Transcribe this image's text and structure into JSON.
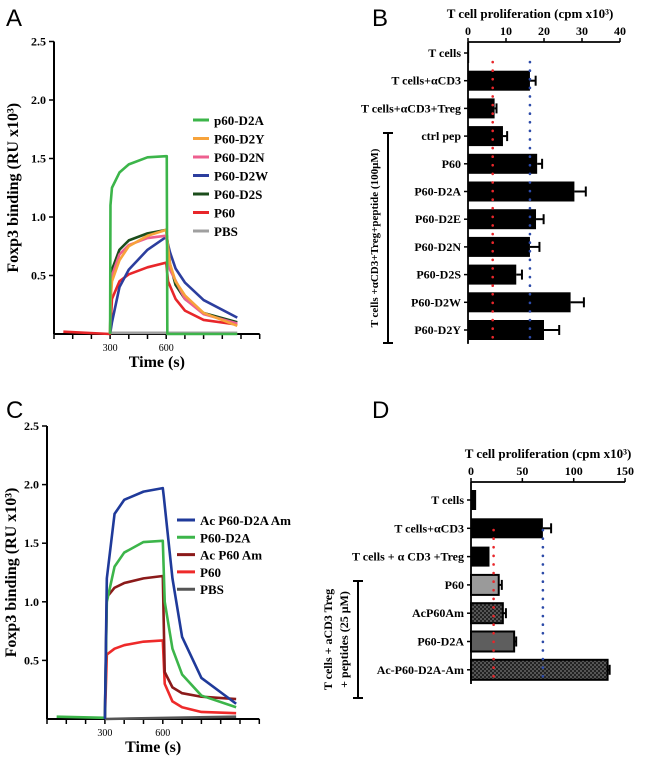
{
  "panels": {
    "a": "A",
    "b": "B",
    "c": "C",
    "d": "D"
  },
  "chart_data": [
    {
      "id": "A",
      "type": "line",
      "xlabel": "Time (s)",
      "ylabel": "Foxp3 binding (RU x10³)",
      "xlim": [
        0,
        1100
      ],
      "ylim": [
        0,
        2.5
      ],
      "xticklabels": [
        "300",
        "600"
      ],
      "yticklabels": [
        "0.5",
        "1.0",
        "1.5",
        "2.0",
        "2.5"
      ],
      "legend_position": "right",
      "series": [
        {
          "name": "p60-D2A",
          "color": "#3cb54a",
          "points": [
            [
              300,
              0
            ],
            [
              302,
              1.1
            ],
            [
              310,
              1.25
            ],
            [
              350,
              1.38
            ],
            [
              400,
              1.45
            ],
            [
              500,
              1.51
            ],
            [
              598,
              1.52
            ],
            [
              603,
              1.52
            ],
            [
              606,
              0
            ],
            [
              980,
              0
            ]
          ]
        },
        {
          "name": "P60-D2Y",
          "color": "#f7a33b",
          "points": [
            [
              300,
              0
            ],
            [
              303,
              0.3
            ],
            [
              310,
              0.45
            ],
            [
              350,
              0.63
            ],
            [
              400,
              0.75
            ],
            [
              500,
              0.84
            ],
            [
              600,
              0.89
            ],
            [
              620,
              0.6
            ],
            [
              650,
              0.45
            ],
            [
              700,
              0.33
            ],
            [
              800,
              0.18
            ],
            [
              980,
              0.07
            ]
          ]
        },
        {
          "name": "P60-D2N",
          "color": "#ee5f8f",
          "points": [
            [
              300,
              0
            ],
            [
              303,
              0.3
            ],
            [
              310,
              0.5
            ],
            [
              350,
              0.68
            ],
            [
              400,
              0.76
            ],
            [
              500,
              0.82
            ],
            [
              600,
              0.84
            ],
            [
              620,
              0.55
            ],
            [
              700,
              0.3
            ],
            [
              800,
              0.17
            ],
            [
              980,
              0.09
            ]
          ]
        },
        {
          "name": "P60-D2W",
          "color": "#2c3e9e",
          "points": [
            [
              300,
              0
            ],
            [
              310,
              0.1
            ],
            [
              350,
              0.4
            ],
            [
              400,
              0.55
            ],
            [
              500,
              0.72
            ],
            [
              600,
              0.83
            ],
            [
              620,
              0.7
            ],
            [
              650,
              0.56
            ],
            [
              700,
              0.44
            ],
            [
              800,
              0.29
            ],
            [
              980,
              0.14
            ]
          ]
        },
        {
          "name": "P60-D2S",
          "color": "#1b4d1b",
          "points": [
            [
              300,
              0
            ],
            [
              303,
              0.35
            ],
            [
              310,
              0.55
            ],
            [
              350,
              0.72
            ],
            [
              400,
              0.8
            ],
            [
              500,
              0.86
            ],
            [
              600,
              0.89
            ],
            [
              620,
              0.6
            ],
            [
              650,
              0.42
            ],
            [
              700,
              0.3
            ],
            [
              800,
              0.18
            ],
            [
              980,
              0.1
            ]
          ]
        },
        {
          "name": "P60",
          "color": "#e8262a",
          "points": [
            [
              50,
              0.02
            ],
            [
              300,
              0
            ],
            [
              310,
              0.3
            ],
            [
              350,
              0.45
            ],
            [
              400,
              0.51
            ],
            [
              500,
              0.57
            ],
            [
              600,
              0.61
            ],
            [
              610,
              0.45
            ],
            [
              650,
              0.3
            ],
            [
              700,
              0.2
            ],
            [
              800,
              0.12
            ],
            [
              980,
              0.08
            ]
          ]
        },
        {
          "name": "PBS",
          "color": "#a0a0a0",
          "points": [
            [
              300,
              0.01
            ],
            [
              980,
              0.01
            ]
          ]
        }
      ]
    },
    {
      "id": "B",
      "type": "bar",
      "orientation": "horizontal",
      "title": "T cell proliferation (cpm x10³)",
      "xlim": [
        0,
        40
      ],
      "xticklabels": [
        "0",
        "10",
        "20",
        "30",
        "40"
      ],
      "group_label": "T cells +αCD3+Treg+peptide (100μM)",
      "reference_lines": [
        {
          "value": 6.5,
          "color": "#e8262a"
        },
        {
          "value": 16.3,
          "color": "#2c4aa8"
        }
      ],
      "categories": [
        "T cells",
        "T cells+αCD3",
        "T cells+αCD3+Treg",
        "ctrl pep",
        "P60",
        "P60-D2A",
        "P60-D2E",
        "P60-D2N",
        "P60-D2S",
        "P60-D2W",
        "P60-D2Y"
      ],
      "values": [
        0.3,
        16.3,
        7.0,
        9.2,
        18.2,
        28.0,
        17.9,
        16.3,
        12.7,
        27.0,
        20.0
      ],
      "errors": [
        0,
        1.5,
        0.5,
        1.1,
        1.3,
        3.0,
        2.0,
        2.5,
        1.5,
        3.5,
        4.0
      ]
    },
    {
      "id": "C",
      "type": "line",
      "xlabel": "Time (s)",
      "ylabel": "Foxp3 binding (RU x10³)",
      "xlim": [
        0,
        1100
      ],
      "ylim": [
        0,
        2.5
      ],
      "xticklabels": [
        "300",
        "600"
      ],
      "yticklabels": [
        "0.5",
        "1.0",
        "1.5",
        "2.0",
        "2.5"
      ],
      "legend_position": "right",
      "series": [
        {
          "name": "Ac P60-D2A Am",
          "color": "#1f3a9a",
          "points": [
            [
              300,
              0
            ],
            [
              310,
              1.2
            ],
            [
              350,
              1.75
            ],
            [
              400,
              1.87
            ],
            [
              500,
              1.94
            ],
            [
              600,
              1.97
            ],
            [
              605,
              1.9
            ],
            [
              650,
              1.2
            ],
            [
              700,
              0.7
            ],
            [
              800,
              0.35
            ],
            [
              980,
              0.13
            ]
          ]
        },
        {
          "name": "P60-D2A",
          "color": "#3cb54a",
          "points": [
            [
              50,
              0.02
            ],
            [
              300,
              0.01
            ],
            [
              310,
              1.0
            ],
            [
              350,
              1.3
            ],
            [
              400,
              1.42
            ],
            [
              500,
              1.51
            ],
            [
              600,
              1.52
            ],
            [
              610,
              1.0
            ],
            [
              650,
              0.6
            ],
            [
              700,
              0.38
            ],
            [
              800,
              0.2
            ],
            [
              980,
              0.1
            ]
          ]
        },
        {
          "name": "Ac P60 Am",
          "color": "#8b1a1a",
          "points": [
            [
              300,
              0
            ],
            [
              310,
              1.05
            ],
            [
              320,
              1.06
            ],
            [
              350,
              1.12
            ],
            [
              400,
              1.16
            ],
            [
              500,
              1.2
            ],
            [
              600,
              1.22
            ],
            [
              610,
              0.4
            ],
            [
              650,
              0.27
            ],
            [
              700,
              0.22
            ],
            [
              800,
              0.19
            ],
            [
              980,
              0.17
            ]
          ]
        },
        {
          "name": "P60",
          "color": "#ee2a2a",
          "points": [
            [
              300,
              0
            ],
            [
              310,
              0.55
            ],
            [
              350,
              0.6
            ],
            [
              400,
              0.63
            ],
            [
              500,
              0.66
            ],
            [
              600,
              0.67
            ],
            [
              610,
              0.3
            ],
            [
              650,
              0.15
            ],
            [
              700,
              0.1
            ],
            [
              800,
              0.06
            ],
            [
              980,
              0.05
            ]
          ]
        },
        {
          "name": "PBS",
          "color": "#555555",
          "points": [
            [
              300,
              0
            ],
            [
              980,
              0.02
            ]
          ]
        }
      ]
    },
    {
      "id": "D",
      "type": "bar",
      "orientation": "horizontal",
      "title": "T cell proliferation (cpm x10³)",
      "xlim": [
        0,
        150
      ],
      "xticklabels": [
        "0",
        "50",
        "100",
        "150"
      ],
      "group_label": [
        "T cells + aCD3 Treg",
        "+ peptides (25 μM)"
      ],
      "reference_lines": [
        {
          "value": 22,
          "color": "#e8262a"
        },
        {
          "value": 70,
          "color": "#2c4aa8"
        }
      ],
      "categories": [
        "T cells",
        "T cells+αCD3",
        "T cells + α CD3 +Treg",
        "P60",
        "AcP60Am",
        "P60-D2A",
        "Ac-P60-D2A-Am"
      ],
      "values": [
        5,
        70,
        18,
        27,
        31,
        42,
        133
      ],
      "errors": [
        0,
        8,
        0,
        3,
        3,
        2,
        2
      ],
      "fills": [
        "solid-black",
        "solid-black",
        "solid-black",
        "light-gray",
        "checker",
        "dark-gray",
        "checker"
      ]
    }
  ]
}
